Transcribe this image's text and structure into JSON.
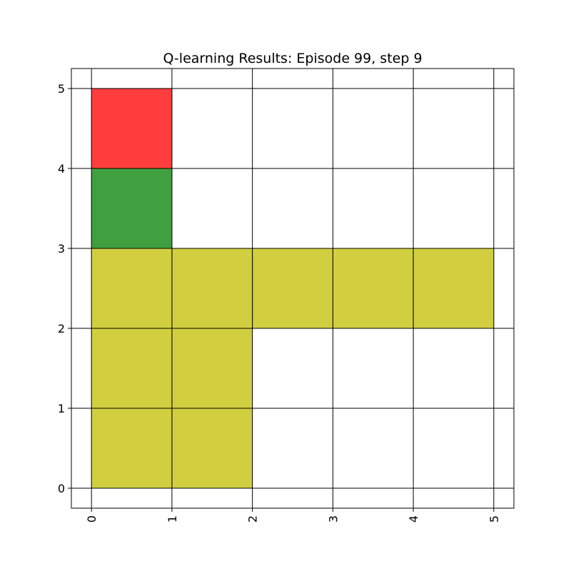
{
  "chart_data": {
    "type": "heatmap",
    "title": "Q-learning Results: Episode 99, step 9",
    "xlabel": "",
    "ylabel": "",
    "xlim": [
      -0.25,
      5.25
    ],
    "ylim": [
      -0.25,
      5.25
    ],
    "xticks": [
      0,
      1,
      2,
      3,
      4,
      5
    ],
    "yticks": [
      0,
      1,
      2,
      3,
      4,
      5
    ],
    "xtick_labels": [
      "0",
      "1",
      "2",
      "3",
      "4",
      "5"
    ],
    "ytick_labels": [
      "0",
      "1",
      "2",
      "3",
      "4",
      "5"
    ],
    "xtick_rotation": 90,
    "grid": true,
    "legend": null,
    "colors": {
      "goal": "#ff3d3d",
      "agent": "#40a040",
      "path": "#d1cf40",
      "grid": "#000000",
      "background": "#ffffff"
    },
    "cells": [
      {
        "x": 0,
        "y": 4,
        "kind": "goal"
      },
      {
        "x": 0,
        "y": 3,
        "kind": "agent"
      },
      {
        "x": 0,
        "y": 2,
        "kind": "path"
      },
      {
        "x": 1,
        "y": 2,
        "kind": "path"
      },
      {
        "x": 2,
        "y": 2,
        "kind": "path"
      },
      {
        "x": 3,
        "y": 2,
        "kind": "path"
      },
      {
        "x": 4,
        "y": 2,
        "kind": "path"
      },
      {
        "x": 0,
        "y": 1,
        "kind": "path"
      },
      {
        "x": 1,
        "y": 1,
        "kind": "path"
      },
      {
        "x": 0,
        "y": 0,
        "kind": "path"
      },
      {
        "x": 1,
        "y": 0,
        "kind": "path"
      }
    ]
  }
}
